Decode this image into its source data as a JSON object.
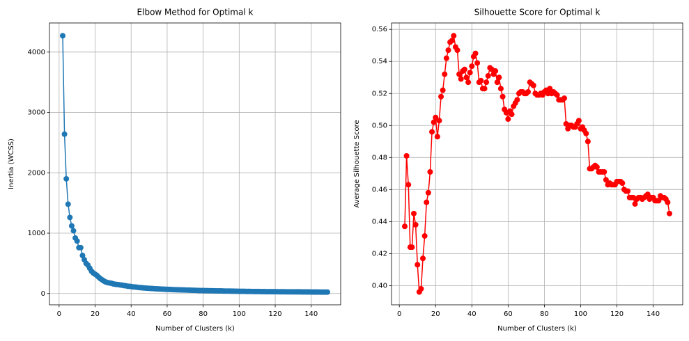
{
  "chart_data": [
    {
      "type": "line",
      "title": "Elbow Method for Optimal k",
      "x_label": "Number of Clusters (k)",
      "y_label": "Inertia (WCSS)",
      "color": "#1f77b4",
      "grid": true,
      "x": [
        2,
        3,
        4,
        5,
        6,
        7,
        8,
        9,
        10,
        11,
        12,
        13,
        14,
        15,
        16,
        17,
        18,
        19,
        20,
        21,
        22,
        23,
        24,
        25,
        26,
        27,
        28,
        29,
        30,
        31,
        32,
        33,
        34,
        35,
        36,
        37,
        38,
        39,
        40,
        41,
        42,
        43,
        44,
        45,
        46,
        47,
        48,
        49,
        50,
        51,
        52,
        53,
        54,
        55,
        56,
        57,
        58,
        59,
        60,
        61,
        62,
        63,
        64,
        65,
        66,
        67,
        68,
        69,
        70,
        71,
        72,
        73,
        74,
        75,
        76,
        77,
        78,
        79,
        80,
        81,
        82,
        83,
        84,
        85,
        86,
        87,
        88,
        89,
        90,
        91,
        92,
        93,
        94,
        95,
        96,
        97,
        98,
        99,
        100,
        101,
        102,
        103,
        104,
        105,
        106,
        107,
        108,
        109,
        110,
        111,
        112,
        113,
        114,
        115,
        116,
        117,
        118,
        119,
        120,
        121,
        122,
        123,
        124,
        125,
        126,
        127,
        128,
        129,
        130,
        131,
        132,
        133,
        134,
        135,
        136,
        137,
        138,
        139,
        140,
        141,
        142,
        143,
        144,
        145,
        146,
        147,
        148,
        149
      ],
      "values": [
        4270,
        2640,
        1900,
        1480,
        1260,
        1120,
        1040,
        920,
        870,
        760,
        760,
        630,
        560,
        500,
        470,
        420,
        370,
        340,
        320,
        300,
        270,
        245,
        225,
        205,
        190,
        180,
        175,
        170,
        160,
        155,
        150,
        148,
        142,
        138,
        132,
        128,
        122,
        120,
        115,
        110,
        108,
        105,
        100,
        98,
        95,
        92,
        90,
        88,
        86,
        84,
        82,
        80,
        78,
        76,
        75,
        73,
        72,
        70,
        69,
        68,
        66,
        65,
        64,
        63,
        62,
        61,
        60,
        59,
        58,
        57,
        56,
        55,
        54,
        53,
        52,
        51,
        50,
        50,
        49,
        48,
        48,
        47,
        46,
        46,
        45,
        44,
        44,
        43,
        43,
        42,
        41,
        41,
        40,
        40,
        39,
        39,
        38,
        38,
        37,
        37,
        36,
        36,
        35,
        35,
        35,
        34,
        34,
        33,
        33,
        33,
        32,
        32,
        32,
        31,
        31,
        31,
        30,
        30,
        30,
        30,
        29,
        29,
        29,
        29,
        28,
        28,
        28,
        28,
        27,
        27,
        27,
        27,
        27,
        26,
        26,
        26,
        26,
        26,
        25,
        25,
        25,
        25,
        25,
        24,
        24,
        24,
        24,
        24
      ],
      "xlim": [
        -5.35,
        156.35
      ],
      "xticks": [
        0,
        20,
        40,
        60,
        80,
        100,
        120,
        140
      ],
      "ylim": [
        -187,
        4482
      ],
      "yticks": [
        0,
        1000,
        2000,
        3000,
        4000
      ]
    },
    {
      "type": "line",
      "title": "Silhouette Score for Optimal k",
      "x_label": "Number of Clusters (k)",
      "y_label": "Average Silhouette Score",
      "color": "#ff0000",
      "grid": true,
      "x": [
        3,
        4,
        5,
        6,
        7,
        8,
        9,
        10,
        11,
        12,
        13,
        14,
        15,
        16,
        17,
        18,
        19,
        20,
        21,
        22,
        23,
        24,
        25,
        26,
        27,
        28,
        29,
        30,
        31,
        32,
        33,
        34,
        35,
        36,
        37,
        38,
        39,
        40,
        41,
        42,
        43,
        44,
        45,
        46,
        47,
        48,
        49,
        50,
        51,
        52,
        53,
        54,
        55,
        56,
        57,
        58,
        59,
        60,
        61,
        62,
        63,
        64,
        65,
        66,
        67,
        68,
        69,
        70,
        71,
        72,
        73,
        74,
        75,
        76,
        77,
        78,
        79,
        80,
        81,
        82,
        83,
        84,
        85,
        86,
        87,
        88,
        89,
        90,
        91,
        92,
        93,
        94,
        95,
        96,
        97,
        98,
        99,
        100,
        101,
        102,
        103,
        104,
        105,
        106,
        107,
        108,
        109,
        110,
        111,
        112,
        113,
        114,
        115,
        116,
        117,
        118,
        119,
        120,
        121,
        122,
        123,
        124,
        125,
        126,
        127,
        128,
        129,
        130,
        131,
        132,
        133,
        134,
        135,
        136,
        137,
        138,
        139,
        140,
        141,
        142,
        143,
        144,
        145,
        146,
        147,
        148,
        149
      ],
      "values": [
        0.437,
        0.481,
        0.463,
        0.424,
        0.424,
        0.445,
        0.438,
        0.413,
        0.396,
        0.398,
        0.417,
        0.431,
        0.452,
        0.458,
        0.471,
        0.496,
        0.502,
        0.505,
        0.493,
        0.503,
        0.518,
        0.522,
        0.532,
        0.542,
        0.547,
        0.552,
        0.553,
        0.556,
        0.549,
        0.547,
        0.532,
        0.529,
        0.534,
        0.535,
        0.53,
        0.527,
        0.533,
        0.537,
        0.543,
        0.545,
        0.539,
        0.527,
        0.528,
        0.523,
        0.523,
        0.527,
        0.531,
        0.536,
        0.535,
        0.532,
        0.534,
        0.527,
        0.53,
        0.523,
        0.518,
        0.51,
        0.508,
        0.504,
        0.509,
        0.507,
        0.512,
        0.514,
        0.516,
        0.52,
        0.521,
        0.521,
        0.52,
        0.52,
        0.521,
        0.527,
        0.526,
        0.525,
        0.52,
        0.519,
        0.519,
        0.52,
        0.519,
        0.521,
        0.522,
        0.52,
        0.523,
        0.52,
        0.521,
        0.52,
        0.519,
        0.516,
        0.516,
        0.516,
        0.517,
        0.501,
        0.498,
        0.5,
        0.5,
        0.499,
        0.499,
        0.501,
        0.503,
        0.498,
        0.499,
        0.497,
        0.495,
        0.49,
        0.473,
        0.473,
        0.474,
        0.475,
        0.474,
        0.471,
        0.471,
        0.471,
        0.471,
        0.466,
        0.463,
        0.464,
        0.463,
        0.463,
        0.463,
        0.465,
        0.465,
        0.465,
        0.464,
        0.46,
        0.459,
        0.459,
        0.455,
        0.455,
        0.455,
        0.451,
        0.454,
        0.455,
        0.455,
        0.454,
        0.455,
        0.456,
        0.457,
        0.454,
        0.455,
        0.455,
        0.453,
        0.453,
        0.453,
        0.456,
        0.455,
        0.455,
        0.454,
        0.452,
        0.445
      ],
      "xlim": [
        -4.3,
        156.3
      ],
      "xticks": [
        0,
        20,
        40,
        60,
        80,
        100,
        120,
        140
      ],
      "ylim": [
        0.388,
        0.564
      ],
      "yticks": [
        {
          "value": 0.4,
          "label": "0.40"
        },
        0.42,
        0.44,
        0.46,
        0.48,
        {
          "value": 0.5,
          "label": "0.50"
        },
        0.52,
        0.54,
        0.56
      ]
    }
  ]
}
